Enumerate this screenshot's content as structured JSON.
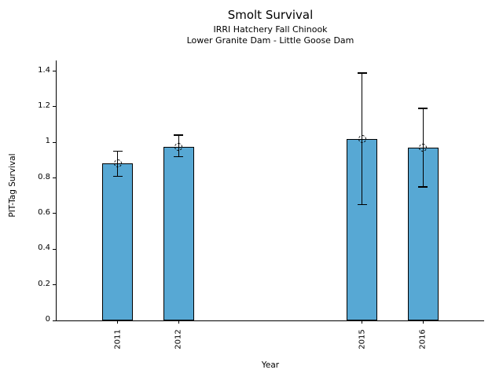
{
  "chart_data": {
    "type": "bar",
    "title": "Smolt Survival",
    "subtitles": [
      "IRRI Hatchery Fall Chinook",
      "Lower Granite Dam - Little Goose Dam"
    ],
    "xlabel": "Year",
    "ylabel": "PIT-Tag Survival",
    "categories": [
      2011,
      2012,
      2015,
      2016
    ],
    "values": [
      0.88,
      0.975,
      1.02,
      0.97
    ],
    "error_low": [
      0.81,
      0.92,
      0.65,
      0.75
    ],
    "error_high": [
      0.95,
      1.04,
      1.39,
      1.19
    ],
    "xlim": [
      2010,
      2017
    ],
    "ylim": [
      0,
      1.46
    ],
    "yticks": [
      0,
      0.2,
      0.4,
      0.6,
      0.8,
      1,
      1.2,
      1.4
    ],
    "ytick_labels": [
      "0",
      "0.2",
      "0.4",
      "0.6",
      "0.8",
      "1",
      "1.2",
      "1.4"
    ],
    "bar_width_years": 0.5,
    "bar_color": "#57a8d4",
    "bar_edge_color": "#000000",
    "error_color": "#000000",
    "marker": "open-circle-dashed",
    "grid": false,
    "legend_position": "none"
  }
}
